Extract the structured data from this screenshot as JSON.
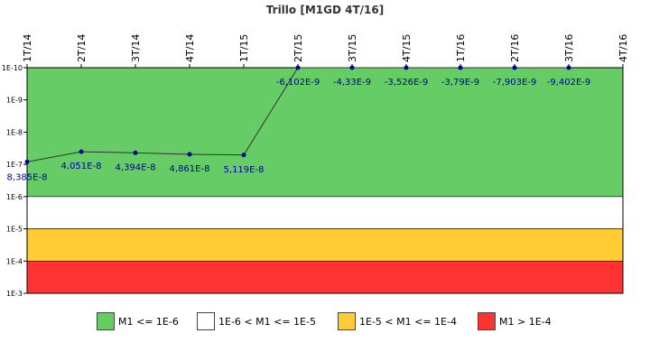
{
  "chart_data": {
    "type": "line",
    "title": "Trillo [M1GD 4T/16]",
    "categories": [
      "1T/14",
      "2T/14",
      "3T/14",
      "4T/14",
      "1T/15",
      "2T/15",
      "3T/15",
      "4T/15",
      "1T/16",
      "2T/16",
      "3T/16",
      "4T/16"
    ],
    "series": [
      {
        "values": [
          8.385e-08,
          4.051e-08,
          4.394e-08,
          4.861e-08,
          5.119e-08,
          -6.102e-09,
          -4.33e-09,
          -3.526e-09,
          -3.79e-09,
          -7.903e-09,
          -9.402e-09,
          null
        ],
        "labels": [
          "8,385E-8",
          "4,051E-8",
          "4,394E-8",
          "4,861E-8",
          "5,119E-8",
          "-6,102E-9",
          "-4,33E-9",
          "-3,526E-9",
          "-3,79E-9",
          "-7,903E-9",
          "-9,402E-9",
          ""
        ],
        "color": "#000099",
        "line_color": "#333333"
      }
    ],
    "y_axis": {
      "scale": "log",
      "inverted": true,
      "min": 1e-10,
      "max": 0.001,
      "ticks": [
        "1E-10",
        "1E-9",
        "1E-8",
        "1E-7",
        "1E-6",
        "1E-5",
        "1E-4",
        "1E-3"
      ],
      "out_of_range_points_drawn_at": 1e-10
    },
    "bands": [
      {
        "from": 1e-10,
        "to": 1e-06,
        "color": "#66cc66",
        "label": "M1 <= 1E-6"
      },
      {
        "from": 1e-06,
        "to": 1e-05,
        "color": "#ffffff",
        "label": "1E-6 < M1 <= 1E-5"
      },
      {
        "from": 1e-05,
        "to": 0.0001,
        "color": "#ffcc33",
        "label": "1E-5 < M1 <= 1E-4"
      },
      {
        "from": 0.0001,
        "to": 0.001,
        "color": "#ff3333",
        "label": "M1 > 1E-4"
      }
    ],
    "legend_position": "bottom",
    "grid": false
  }
}
